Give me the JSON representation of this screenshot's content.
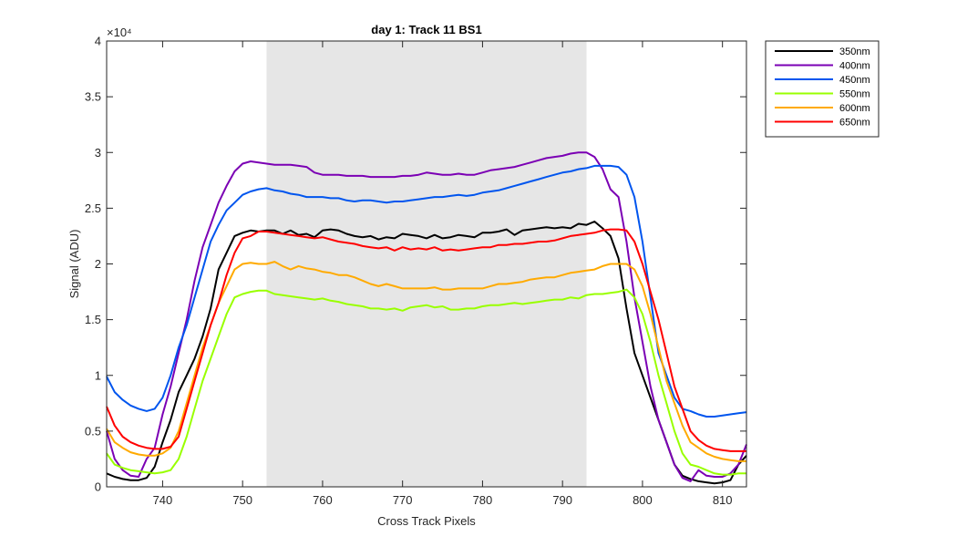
{
  "chart_data": {
    "type": "line",
    "title": "day 1: Track 11  BS1",
    "xlabel": "Cross Track Pixels",
    "ylabel": "Signal (ADU)",
    "y_exponent_label": "×10⁴",
    "xlim": [
      733,
      813
    ],
    "ylim": [
      0,
      40000
    ],
    "x_ticks": [
      740,
      750,
      760,
      770,
      780,
      790,
      800,
      810
    ],
    "x_tick_labels": [
      "740",
      "750",
      "760",
      "770",
      "780",
      "790",
      "800",
      "810"
    ],
    "y_ticks": [
      0,
      5000,
      10000,
      15000,
      20000,
      25000,
      30000,
      35000,
      40000
    ],
    "y_tick_labels": [
      "0",
      "0.5",
      "1",
      "1.5",
      "2",
      "2.5",
      "3",
      "3.5",
      "4"
    ],
    "shaded_region": {
      "x": [
        753,
        793
      ],
      "color": "#e6e6e6"
    },
    "grid": false,
    "legend_position": "outside-top-right",
    "x": [
      733,
      734,
      735,
      736,
      737,
      738,
      739,
      740,
      741,
      742,
      743,
      744,
      745,
      746,
      747,
      748,
      749,
      750,
      751,
      752,
      753,
      754,
      755,
      756,
      757,
      758,
      759,
      760,
      761,
      762,
      763,
      764,
      765,
      766,
      767,
      768,
      769,
      770,
      771,
      772,
      773,
      774,
      775,
      776,
      777,
      778,
      779,
      780,
      781,
      782,
      783,
      784,
      785,
      786,
      787,
      788,
      789,
      790,
      791,
      792,
      793,
      794,
      795,
      796,
      797,
      798,
      799,
      800,
      801,
      802,
      803,
      804,
      805,
      806,
      807,
      808,
      809,
      810,
      811,
      812,
      813
    ],
    "series": [
      {
        "name": "350nm",
        "color": "#000000",
        "values": [
          1200,
          900,
          700,
          600,
          600,
          800,
          1800,
          4000,
          6000,
          8500,
          10000,
          11500,
          13500,
          16000,
          19500,
          21000,
          22500,
          22800,
          23000,
          22900,
          23000,
          23000,
          22700,
          23000,
          22600,
          22700,
          22400,
          23000,
          23100,
          23000,
          22700,
          22500,
          22400,
          22500,
          22200,
          22400,
          22300,
          22700,
          22600,
          22500,
          22300,
          22600,
          22300,
          22400,
          22600,
          22500,
          22400,
          22800,
          22800,
          22900,
          23100,
          22600,
          23000,
          23100,
          23200,
          23300,
          23200,
          23300,
          23200,
          23600,
          23500,
          23800,
          23200,
          22500,
          20500,
          16000,
          12000,
          10000,
          8000,
          6000,
          4000,
          2000,
          1000,
          700,
          500,
          400,
          300,
          400,
          600,
          2000,
          2800
        ]
      },
      {
        "name": "400nm",
        "color": "#7b00b4",
        "values": [
          5000,
          2500,
          1500,
          1000,
          900,
          2500,
          3500,
          6500,
          9000,
          12000,
          15000,
          18500,
          21500,
          23500,
          25500,
          27000,
          28300,
          29000,
          29200,
          29100,
          29000,
          28900,
          28900,
          28900,
          28800,
          28700,
          28200,
          28000,
          28000,
          28000,
          27900,
          27900,
          27900,
          27800,
          27800,
          27800,
          27800,
          27900,
          27900,
          28000,
          28200,
          28100,
          28000,
          28000,
          28100,
          28000,
          28000,
          28200,
          28400,
          28500,
          28600,
          28700,
          28900,
          29100,
          29300,
          29500,
          29600,
          29700,
          29900,
          30000,
          30000,
          29600,
          28500,
          26700,
          26000,
          22000,
          17000,
          13000,
          9000,
          6000,
          4000,
          2000,
          800,
          500,
          1500,
          1000,
          900,
          900,
          1200,
          2000,
          3800
        ]
      },
      {
        "name": "450nm",
        "color": "#0055ee",
        "values": [
          9900,
          8500,
          7800,
          7300,
          7000,
          6800,
          7000,
          8000,
          10000,
          12500,
          14500,
          17000,
          19500,
          22000,
          23500,
          24800,
          25500,
          26200,
          26500,
          26700,
          26800,
          26600,
          26500,
          26300,
          26200,
          26000,
          26000,
          26000,
          25900,
          25900,
          25700,
          25600,
          25700,
          25700,
          25600,
          25500,
          25600,
          25600,
          25700,
          25800,
          25900,
          26000,
          26000,
          26100,
          26200,
          26100,
          26200,
          26400,
          26500,
          26600,
          26800,
          27000,
          27200,
          27400,
          27600,
          27800,
          28000,
          28200,
          28300,
          28500,
          28600,
          28800,
          28800,
          28800,
          28700,
          28000,
          26000,
          22000,
          17000,
          12000,
          10000,
          8000,
          7000,
          6800,
          6500,
          6300,
          6300,
          6400,
          6500,
          6600,
          6700
        ]
      },
      {
        "name": "550nm",
        "color": "#99ff00",
        "values": [
          3000,
          2000,
          1700,
          1500,
          1400,
          1300,
          1200,
          1300,
          1500,
          2500,
          4500,
          7000,
          9500,
          11500,
          13500,
          15500,
          17000,
          17300,
          17500,
          17600,
          17600,
          17300,
          17200,
          17100,
          17000,
          16900,
          16800,
          16900,
          16700,
          16600,
          16400,
          16300,
          16200,
          16000,
          16000,
          15900,
          16000,
          15800,
          16100,
          16200,
          16300,
          16100,
          16200,
          15900,
          15900,
          16000,
          16000,
          16200,
          16300,
          16300,
          16400,
          16500,
          16400,
          16500,
          16600,
          16700,
          16800,
          16800,
          17000,
          16900,
          17200,
          17300,
          17300,
          17400,
          17500,
          17700,
          17000,
          15500,
          13000,
          10000,
          7500,
          5000,
          3000,
          2000,
          1800,
          1500,
          1200,
          1100,
          1100,
          1200,
          1200
        ]
      },
      {
        "name": "600nm",
        "color": "#ffaa00",
        "values": [
          5200,
          4000,
          3500,
          3100,
          2900,
          2800,
          2800,
          3000,
          3500,
          5000,
          7500,
          10000,
          12500,
          14500,
          16500,
          18000,
          19500,
          20000,
          20100,
          20000,
          20000,
          20200,
          19800,
          19500,
          19800,
          19600,
          19500,
          19300,
          19200,
          19000,
          19000,
          18800,
          18500,
          18200,
          18000,
          18200,
          18000,
          17800,
          17800,
          17800,
          17800,
          17900,
          17700,
          17700,
          17800,
          17800,
          17800,
          17800,
          18000,
          18200,
          18200,
          18300,
          18400,
          18600,
          18700,
          18800,
          18800,
          19000,
          19200,
          19300,
          19400,
          19500,
          19800,
          20000,
          20000,
          20000,
          19500,
          18000,
          15500,
          12500,
          9500,
          7500,
          5500,
          4000,
          3500,
          3000,
          2700,
          2500,
          2400,
          2300,
          2300
        ]
      },
      {
        "name": "650nm",
        "color": "#ff0000",
        "values": [
          7200,
          5500,
          4500,
          4000,
          3700,
          3500,
          3400,
          3400,
          3600,
          4500,
          7000,
          9500,
          12000,
          14500,
          16500,
          19000,
          21000,
          22300,
          22500,
          22900,
          22900,
          22800,
          22700,
          22600,
          22500,
          22400,
          22300,
          22400,
          22200,
          22000,
          21900,
          21800,
          21600,
          21500,
          21400,
          21500,
          21200,
          21500,
          21300,
          21400,
          21300,
          21500,
          21200,
          21300,
          21200,
          21300,
          21400,
          21500,
          21500,
          21700,
          21700,
          21800,
          21800,
          21900,
          22000,
          22000,
          22100,
          22300,
          22500,
          22600,
          22700,
          22800,
          23000,
          23100,
          23100,
          23000,
          22000,
          20000,
          17500,
          15000,
          12000,
          9000,
          7000,
          5000,
          4200,
          3700,
          3400,
          3300,
          3200,
          3200,
          3200
        ]
      }
    ]
  }
}
